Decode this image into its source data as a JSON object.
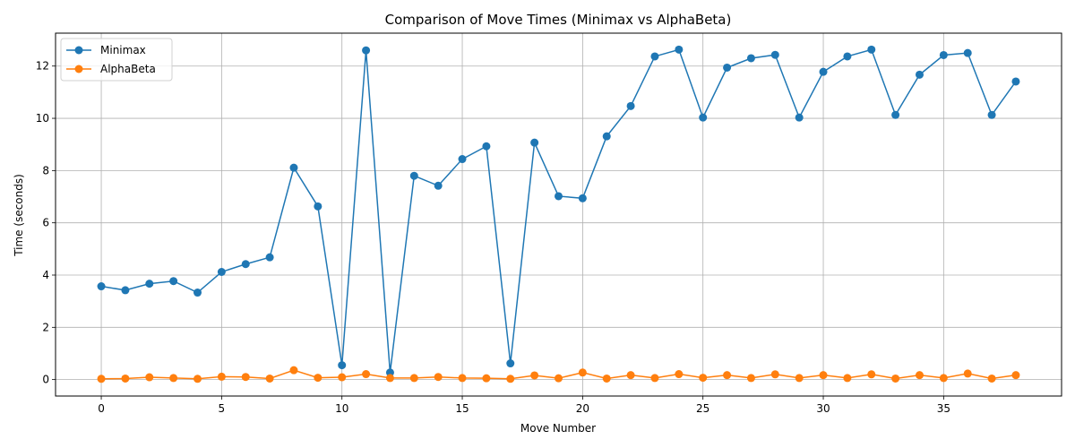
{
  "chart_data": {
    "type": "line",
    "title": "Comparison of Move Times (Minimax vs AlphaBeta)",
    "xlabel": "Move Number",
    "ylabel": "Time (seconds)",
    "xlim": [
      -1.9,
      39.9
    ],
    "ylim": [
      -0.63,
      13.26
    ],
    "xticks": [
      0,
      5,
      10,
      15,
      20,
      25,
      30,
      35
    ],
    "yticks": [
      0,
      2,
      4,
      6,
      8,
      10,
      12
    ],
    "grid": true,
    "legend": "top-left",
    "x": [
      0,
      1,
      2,
      3,
      4,
      5,
      6,
      7,
      8,
      9,
      10,
      11,
      12,
      13,
      14,
      15,
      16,
      17,
      18,
      19,
      20,
      21,
      22,
      23,
      24,
      25,
      26,
      27,
      28,
      29,
      30,
      31,
      32,
      33,
      34,
      35,
      36,
      37,
      38
    ],
    "series": [
      {
        "name": "Minimax",
        "color": "#1f77b4",
        "values": [
          3.57,
          3.42,
          3.67,
          3.77,
          3.33,
          4.12,
          4.42,
          4.68,
          8.11,
          6.63,
          0.55,
          12.6,
          0.27,
          7.8,
          7.42,
          8.44,
          8.93,
          0.62,
          9.07,
          7.02,
          6.94,
          9.31,
          10.47,
          12.37,
          12.63,
          10.03,
          11.94,
          12.3,
          12.43,
          10.03,
          11.78,
          12.37,
          12.63,
          10.13,
          11.67,
          12.42,
          12.5,
          10.13,
          11.41
        ]
      },
      {
        "name": "AlphaBeta",
        "color": "#ff7f0e",
        "values": [
          0.03,
          0.04,
          0.09,
          0.06,
          0.03,
          0.11,
          0.1,
          0.04,
          0.36,
          0.07,
          0.09,
          0.21,
          0.06,
          0.06,
          0.1,
          0.06,
          0.05,
          0.03,
          0.16,
          0.05,
          0.27,
          0.04,
          0.17,
          0.06,
          0.21,
          0.07,
          0.17,
          0.06,
          0.2,
          0.06,
          0.17,
          0.06,
          0.2,
          0.04,
          0.17,
          0.06,
          0.23,
          0.04,
          0.17
        ]
      }
    ]
  }
}
